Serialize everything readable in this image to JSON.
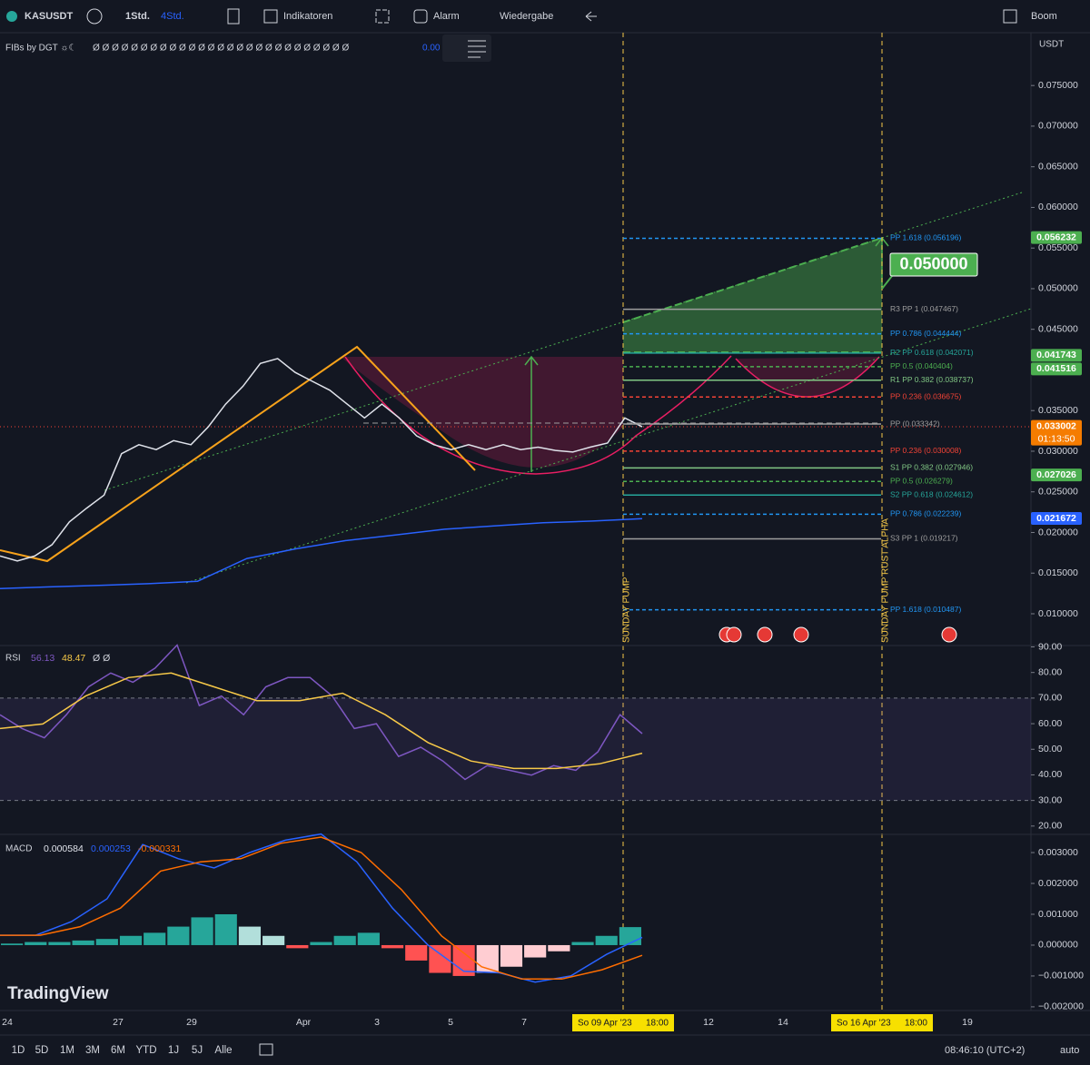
{
  "toolbar": {
    "symbol": "KASUSDT",
    "intervals": [
      "1Std.",
      "4Std."
    ],
    "indicators": "Indikatoren",
    "alarm": "Alarm",
    "replay": "Wiedergabe",
    "layout_name": "Boom"
  },
  "indicator_legend": {
    "name": "FIBs by DGT ☼☾",
    "values": "Ø Ø Ø Ø Ø Ø Ø Ø Ø Ø Ø Ø Ø Ø Ø Ø Ø Ø Ø Ø Ø Ø Ø Ø Ø Ø Ø",
    "last": "0.00"
  },
  "currency": "USDT",
  "chart_data": [
    {
      "type": "line",
      "series": [
        {
          "color": "#e0e3eb",
          "values": [
            0.0171,
            0.0165,
            0.0171,
            0.0185,
            0.0213,
            0.023,
            0.0246,
            0.0297,
            0.0308,
            0.0302,
            0.0313,
            0.0308,
            0.033,
            0.0358,
            0.038,
            0.0408,
            0.0414,
            0.0397,
            0.0386,
            0.0375,
            0.0358,
            0.0341,
            0.0358,
            0.0341,
            0.0319,
            0.0308,
            0.0302,
            0.0308,
            0.0302,
            0.0308,
            0.0302,
            0.0305,
            0.0301,
            0.0299,
            0.0305,
            0.031,
            0.0341,
            0.033
          ]
        },
        {
          "color": "#2962ff",
          "values": [
            0.0131,
            0.0133,
            0.0135,
            0.0137,
            0.014,
            0.0168,
            0.018,
            0.019,
            0.0197,
            0.0204,
            0.0208,
            0.0212,
            0.0214,
            0.0217
          ]
        }
      ],
      "ylim": [
        0.0062,
        0.0815
      ],
      "yticks": [
        {
          "value": 0.075,
          "label": "0.075000"
        },
        {
          "value": 0.07,
          "label": "0.070000"
        },
        {
          "value": 0.065,
          "label": "0.065000"
        },
        {
          "value": 0.06,
          "label": "0.060000"
        },
        {
          "value": 0.055,
          "label": "0.055000"
        },
        {
          "value": 0.05,
          "label": "0.050000"
        },
        {
          "value": 0.045,
          "label": "0.045000"
        },
        {
          "value": 0.04,
          "label": "0.040000"
        },
        {
          "value": 0.035,
          "label": "0.035000"
        },
        {
          "value": 0.03,
          "label": "0.030000"
        },
        {
          "value": 0.025,
          "label": "0.025000"
        },
        {
          "value": 0.02,
          "label": "0.020000"
        },
        {
          "value": 0.015,
          "label": "0.015000"
        },
        {
          "value": 0.01,
          "label": "0.010000"
        }
      ],
      "levels": [
        {
          "label": "PP 1.618 (0.056196)",
          "value": 0.056196,
          "color": "#2196f3",
          "style": "dashed"
        },
        {
          "label": "R3 PP 1 (0.047467)",
          "value": 0.047467,
          "color": "#9e9e9e",
          "style": "solid"
        },
        {
          "label": "PP 0.786 (0.044444)",
          "value": 0.044444,
          "color": "#2196f3",
          "style": "dashed"
        },
        {
          "label": "R2 PP 0.618 (0.042071)",
          "value": 0.042071,
          "color": "#26a69a",
          "style": "solid"
        },
        {
          "label": "PP 0.5 (0.040404)",
          "value": 0.040404,
          "color": "#4caf50",
          "style": "dashed"
        },
        {
          "label": "R1 PP 0.382 (0.038737)",
          "value": 0.038737,
          "color": "#81c784",
          "style": "solid"
        },
        {
          "label": "PP 0.236 (0.036675)",
          "value": 0.036675,
          "color": "#f44336",
          "style": "dashed"
        },
        {
          "label": "PP (0.033342)",
          "value": 0.033342,
          "color": "#9e9e9e",
          "style": "solid"
        },
        {
          "label": "PP 0.236 (0.030008)",
          "value": 0.030008,
          "color": "#f44336",
          "style": "dashed"
        },
        {
          "label": "S1 PP 0.382 (0.027946)",
          "value": 0.027946,
          "color": "#81c784",
          "style": "solid"
        },
        {
          "label": "PP 0.5 (0.026279)",
          "value": 0.026279,
          "color": "#4caf50",
          "style": "dashed"
        },
        {
          "label": "S2 PP 0.618 (0.024612)",
          "value": 0.024612,
          "color": "#26a69a",
          "style": "solid"
        },
        {
          "label": "PP 0.786 (0.022239)",
          "value": 0.022239,
          "color": "#2196f3",
          "style": "dashed"
        },
        {
          "label": "S3 PP 1 (0.019217)",
          "value": 0.019217,
          "color": "#9e9e9e",
          "style": "solid"
        },
        {
          "label": "PP 1.618 (0.010487)",
          "value": 0.010487,
          "color": "#2196f3",
          "style": "dashed"
        }
      ],
      "price_labels": [
        {
          "value": 0.056232,
          "color": "#4caf50"
        },
        {
          "value": 0.041743,
          "color": "#4caf50"
        },
        {
          "value": 0.041516,
          "color": "#4caf50"
        },
        {
          "value": 0.033002,
          "color": "#f57c00"
        },
        {
          "value": 0.027026,
          "color": "#4caf50"
        },
        {
          "value": 0.021672,
          "color": "#2962ff"
        }
      ],
      "countdown": "01:13:50",
      "target_label": {
        "value": 0.05,
        "label": "0.050000"
      },
      "annotations": [
        "SUNDAY PUMP",
        "SUNDAY PUMP RUST ALPHA"
      ]
    },
    {
      "type": "line",
      "title": "RSI",
      "series": [
        {
          "color": "#7e57c2",
          "values": [
            63.5,
            58.1,
            54.5,
            63.5,
            74.4,
            79.8,
            76.2,
            81.7,
            90.7,
            67.1,
            70.8,
            63.5,
            74.4,
            78.0,
            78.0,
            70.8,
            58.1,
            60.0,
            47.2,
            50.8,
            45.4,
            38.2,
            43.6,
            41.8,
            39.9,
            43.6,
            41.8,
            49.0,
            63.5,
            56.13
          ]
        },
        {
          "color": "#f7c948",
          "values": [
            58.1,
            59.9,
            70.8,
            78.0,
            79.8,
            74.4,
            69.0,
            69.0,
            71.9,
            63.5,
            52.6,
            45.4,
            42.5,
            42.5,
            44.3,
            48.47
          ]
        }
      ],
      "legend_values": [
        56.13,
        48.47
      ],
      "legend_extra": "Ø Ø",
      "bands": [
        70,
        30
      ],
      "ylim": [
        17.1,
        90.18
      ],
      "yticks": [
        {
          "value": 90,
          "label": "90.00"
        },
        {
          "value": 80,
          "label": "80.00"
        },
        {
          "value": 70,
          "label": "70.00"
        },
        {
          "value": 60,
          "label": "60.00"
        },
        {
          "value": 50,
          "label": "50.00"
        },
        {
          "value": 40,
          "label": "40.00"
        },
        {
          "value": 30,
          "label": "30.00"
        },
        {
          "value": 20,
          "label": "20.00"
        }
      ]
    },
    {
      "type": "line",
      "title": "MACD",
      "series": [
        {
          "color": "#2962ff",
          "values": [
            0.00032,
            0.00032,
            0.00076,
            0.0015,
            0.00326,
            0.0028,
            0.0025,
            0.003,
            0.0034,
            0.0036,
            0.0027,
            0.0012,
            0.0,
            -0.00085,
            -0.0009,
            -0.0012,
            -0.001,
            -0.0003,
            0.000253
          ]
        },
        {
          "color": "#ff6d00",
          "values": [
            0.00032,
            0.00032,
            0.0006,
            0.0012,
            0.0024,
            0.0027,
            0.0028,
            0.0033,
            0.0035,
            0.003,
            0.0018,
            0.0003,
            -0.0007,
            -0.0011,
            -0.0011,
            -0.0008,
            -0.000331
          ]
        }
      ],
      "histogram": {
        "values": [
          5e-05,
          0.0001,
          0.0001,
          0.00015,
          0.0002,
          0.0003,
          0.0004,
          0.0006,
          0.0009,
          0.001,
          0.0006,
          0.0003,
          -0.0001,
          0.0001,
          0.0003,
          0.0004,
          -0.0001,
          -0.0005,
          -0.0009,
          -0.001,
          -0.0009,
          -0.0007,
          -0.0004,
          -0.0002,
          0.0001,
          0.0003,
          0.000584
        ],
        "colors": [
          "#26a69a",
          "#b2dfdb",
          "#ff5252",
          "#ffcdd2"
        ]
      },
      "legend_values": [
        0.000584,
        0.000253,
        -0.000331
      ],
      "ylim": [
        -0.00212,
        0.00356
      ],
      "yticks": [
        {
          "value": 0.003,
          "label": "0.003000"
        },
        {
          "value": 0.002,
          "label": "0.002000"
        },
        {
          "value": 0.001,
          "label": "0.001000"
        },
        {
          "value": 0,
          "label": "0.000000"
        },
        {
          "value": -0.001,
          "label": "−0.001000"
        },
        {
          "value": -0.002,
          "label": "−0.002000"
        }
      ]
    }
  ],
  "time_axis": {
    "labels": [
      "24",
      "27",
      "29",
      "Apr",
      "3",
      "5",
      "7",
      "12",
      "14",
      "19"
    ],
    "markers": [
      {
        "date": "So 09 Apr '23",
        "time": "18:00"
      },
      {
        "date": "So 16 Apr '23",
        "time": "18:00"
      }
    ]
  },
  "range_buttons": [
    "1D",
    "5D",
    "1M",
    "3M",
    "6M",
    "YTD",
    "1J",
    "5J",
    "Alle"
  ],
  "clock": "08:46:10 (UTC+2)",
  "scale_mode": "auto",
  "brand": "TradingView"
}
